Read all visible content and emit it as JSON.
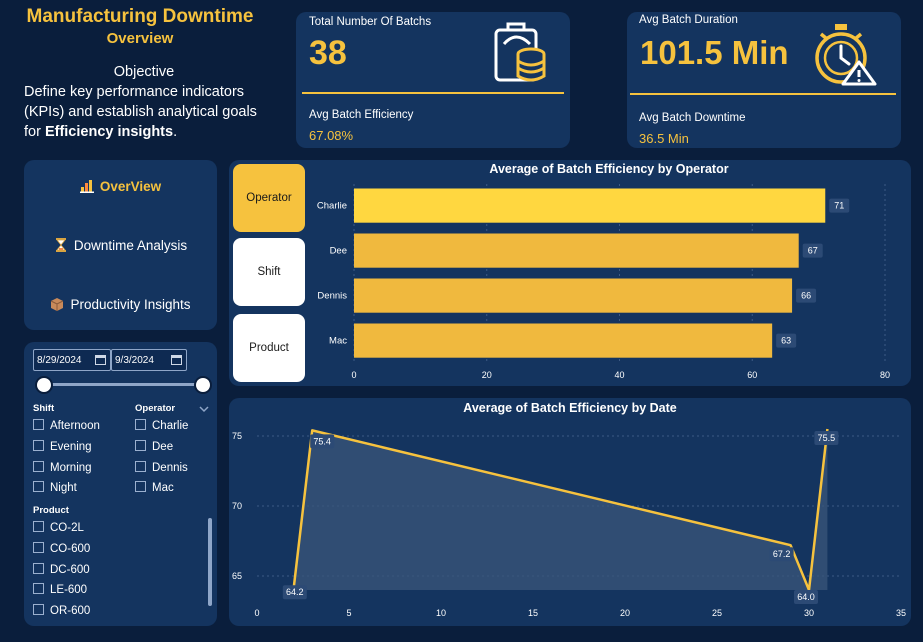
{
  "header": {
    "title": "Manufacturing Downtime",
    "subtitle": "Overview"
  },
  "objective": {
    "heading": "Objective",
    "text_before": "Define key performance indicators (KPIs) and establish analytical goals for ",
    "text_bold": "Efficiency insights",
    "text_after": "."
  },
  "kpi_batches": {
    "label": "Total Number Of Batchs",
    "value": "38",
    "sub_label": "Avg Batch Efficiency",
    "sub_value": "67.08%",
    "icon": "clipboard-database-icon"
  },
  "kpi_duration": {
    "label": "Avg Batch Duration",
    "value": "101.5 Min",
    "sub_label": "Avg Batch Downtime",
    "sub_value": "36.5 Min",
    "icon": "stopwatch-warning-icon"
  },
  "nav": {
    "items": [
      {
        "label": "OverView",
        "icon": "chart-icon",
        "active": true
      },
      {
        "label": "Downtime Analysis",
        "icon": "hourglass-icon",
        "active": false
      },
      {
        "label": "Productivity Insights",
        "icon": "box-icon",
        "active": false
      }
    ]
  },
  "filters": {
    "date_start": "8/29/2024",
    "date_end": "9/3/2024",
    "shift_label": "Shift",
    "shifts": [
      "Afternoon",
      "Evening",
      "Morning",
      "Night"
    ],
    "operator_label": "Operator",
    "operators": [
      "Charlie",
      "Dee",
      "Dennis",
      "Mac"
    ],
    "product_label": "Product",
    "products": [
      "CO-2L",
      "CO-600",
      "DC-600",
      "LE-600",
      "OR-600"
    ]
  },
  "segment_buttons": [
    {
      "label": "Operator",
      "active": true
    },
    {
      "label": "Shift",
      "active": false
    },
    {
      "label": "Product",
      "active": false
    }
  ],
  "colors": {
    "accent": "#f6c23e",
    "bar": "#f0b93e",
    "bar_highlight": "#ffd740",
    "panel": "#14345f",
    "background": "#0a1e3c"
  },
  "chart_data": [
    {
      "type": "bar",
      "orientation": "horizontal",
      "title": "Average of Batch Efficiency by Operator",
      "categories": [
        "Charlie",
        "Dee",
        "Dennis",
        "Mac"
      ],
      "values": [
        71,
        67,
        66,
        63
      ],
      "xlim": [
        0,
        80
      ],
      "xticks": [
        0,
        20,
        40,
        60,
        80
      ],
      "grid": true
    },
    {
      "type": "area",
      "title": "Average of Batch Efficiency by Date",
      "x": [
        2,
        3,
        29,
        30,
        31
      ],
      "y": [
        64.2,
        75.4,
        67.2,
        64.0,
        75.5
      ],
      "labels": [
        "64.2",
        "75.4",
        "67.2",
        "64.0",
        "75.5"
      ],
      "xlim": [
        0,
        35
      ],
      "xticks": [
        0,
        5,
        10,
        15,
        20,
        25,
        30,
        35
      ],
      "ylim": [
        64,
        76
      ],
      "yticks": [
        65,
        70,
        75
      ],
      "grid": true
    }
  ]
}
